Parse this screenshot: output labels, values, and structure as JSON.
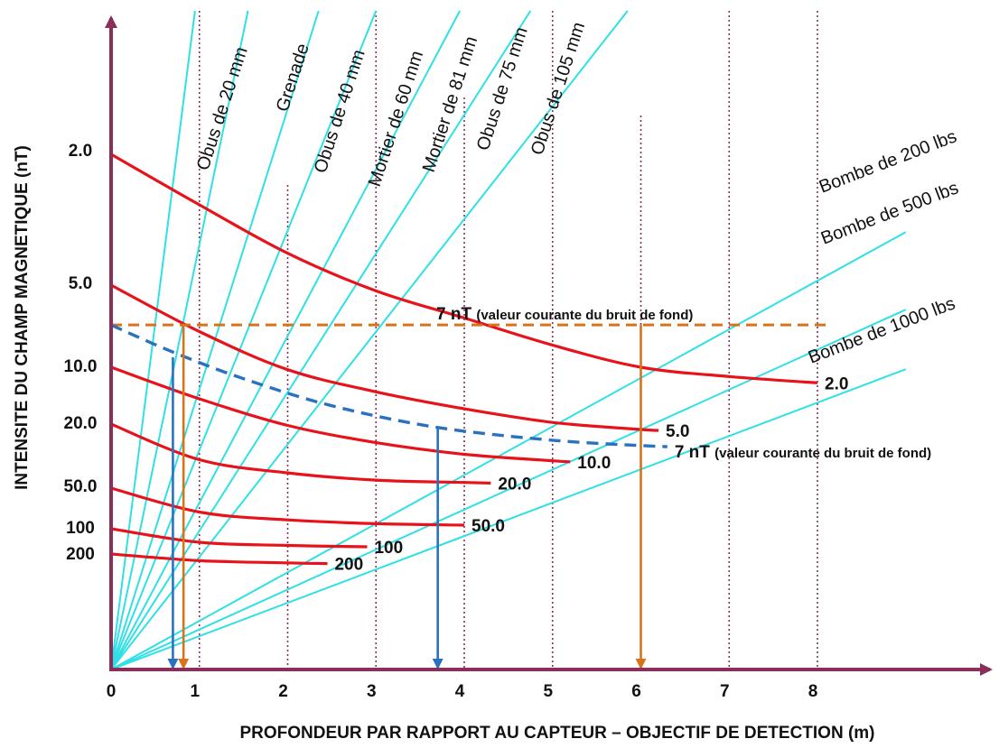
{
  "chart_data": {
    "type": "line",
    "xlabel": "PROFONDEUR PAR RAPPORT AU CAPTEUR – OBJECTIF DE DETECTION (m)",
    "ylabel": "INTENSITE DU CHAMP MAGNETIQUE (nT)",
    "xlim": [
      0,
      8
    ],
    "x_ticks": [
      "0",
      "1",
      "2",
      "3",
      "4",
      "5",
      "6",
      "7",
      "8"
    ],
    "y_ticks": [
      "2.0",
      "5.0",
      "10.0",
      "20.0",
      "50.0",
      "100",
      "200"
    ],
    "y_tick_values": [
      2,
      5,
      10,
      20,
      50,
      100,
      200
    ],
    "grid": "vertical dotted lines at x = 1 … 8",
    "colors": {
      "axes": "#8b2f5a",
      "grid": "#8b2f5a",
      "field_curves": "#e8121a",
      "ordnance_lines": "#2fe0e6",
      "noise_line": "#d6741c",
      "noise_curve": "#2a72c0",
      "drop_arrows_blue": "#2a72c0",
      "drop_arrows_orange": "#d6741c"
    },
    "field_curves": [
      {
        "name": "2.0",
        "points": [
          [
            0,
            2.0
          ],
          [
            1,
            2.85
          ],
          [
            2,
            4.0
          ],
          [
            3,
            5.25
          ],
          [
            4,
            6.6
          ],
          [
            5,
            8.3
          ],
          [
            6,
            10.0
          ],
          [
            7,
            11.2
          ],
          [
            8,
            12.1
          ]
        ]
      },
      {
        "name": "5.0",
        "points": [
          [
            0,
            5.0
          ],
          [
            1,
            7.4
          ],
          [
            2,
            10.3
          ],
          [
            3,
            13.5
          ],
          [
            4,
            16.6
          ],
          [
            5,
            19.6
          ],
          [
            6,
            21.6
          ],
          [
            6.2,
            21.9
          ]
        ]
      },
      {
        "name": "10.0",
        "points": [
          [
            0,
            10.0
          ],
          [
            1,
            14.7
          ],
          [
            2,
            20.4
          ],
          [
            3,
            26.1
          ],
          [
            4,
            30.8
          ],
          [
            5,
            33.8
          ],
          [
            5.2,
            34.3
          ]
        ]
      },
      {
        "name": "20.0",
        "points": [
          [
            0,
            20.0
          ],
          [
            1,
            33.3
          ],
          [
            2,
            40.2
          ],
          [
            3,
            44.6
          ],
          [
            4,
            46.1
          ],
          [
            4.3,
            46.5
          ]
        ]
      },
      {
        "name": "50.0",
        "points": [
          [
            0,
            50.0
          ],
          [
            1,
            75.2
          ],
          [
            2,
            86.0
          ],
          [
            3,
            91.7
          ],
          [
            4,
            94.0
          ]
        ]
      },
      {
        "name": "100",
        "points": [
          [
            0,
            100
          ],
          [
            1,
            145
          ],
          [
            2,
            158
          ],
          [
            2.9,
            164
          ]
        ]
      },
      {
        "name": "200",
        "points": [
          [
            0,
            200
          ],
          [
            1,
            240
          ],
          [
            2,
            255
          ],
          [
            2.45,
            260
          ]
        ]
      }
    ],
    "noise_level": {
      "label_main": "7 nT",
      "label_note": "(valeur courante du bruit de fond)",
      "value": 7.0,
      "x_end": 8.1
    },
    "noise_curve": {
      "label_main": "7 nT",
      "label_note": "(valeur courante du bruit de fond)",
      "points": [
        [
          0,
          7.0
        ],
        [
          0.7,
          8.8
        ],
        [
          1.5,
          11.5
        ],
        [
          2.5,
          16.0
        ],
        [
          3.7,
          21.0
        ],
        [
          5,
          25.2
        ],
        [
          6,
          27.2
        ],
        [
          6.3,
          27.6
        ]
      ]
    },
    "ordnance_lines": [
      {
        "name": "Obus de 20 mm",
        "end": [
          0.95,
          0.0
        ]
      },
      {
        "name": "Grenade",
        "end": [
          1.55,
          0.0
        ]
      },
      {
        "name": "Obus de 40 mm",
        "end": [
          2.35,
          0.0
        ]
      },
      {
        "name": "Mortier de 60 mm",
        "end": [
          3.0,
          0.0
        ]
      },
      {
        "name": "Mortier de 81 mm",
        "end": [
          3.95,
          0.0
        ]
      },
      {
        "name": "Obus de 75 mm",
        "end": [
          4.75,
          0.0
        ]
      },
      {
        "name": "Obus de 105 mm",
        "end": [
          5.85,
          0.0
        ]
      },
      {
        "name": "Bombe de 200 lbs",
        "end": [
          9.0,
          3.45
        ]
      },
      {
        "name": "Bombe de 500 lbs",
        "end": [
          9.0,
          6.15
        ]
      },
      {
        "name": "Bombe de 1000 lbs",
        "end": [
          9.0,
          10.25
        ]
      }
    ],
    "detection_arrows": [
      {
        "from": [
          0.7,
          9.2
        ],
        "depth": 0.7,
        "color": "blue"
      },
      {
        "from": [
          0.82,
          7.0
        ],
        "depth": 0.82,
        "color": "orange"
      },
      {
        "from": [
          3.7,
          21.0
        ],
        "depth": 3.7,
        "color": "blue"
      },
      {
        "from": [
          6.0,
          7.0
        ],
        "depth": 6.0,
        "color": "orange"
      }
    ]
  }
}
